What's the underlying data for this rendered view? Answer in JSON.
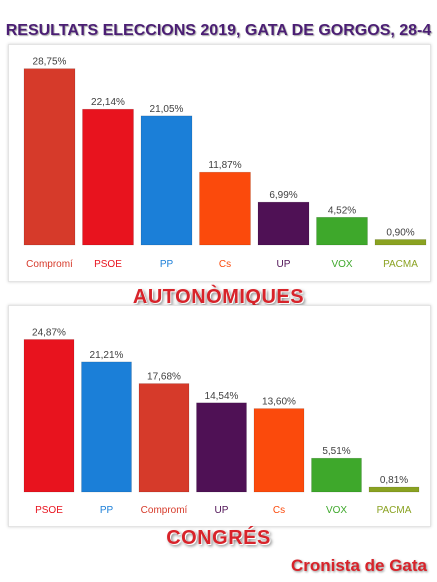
{
  "title": "RESULTATS ELECCIONS 2019, GATA DE GORGOS, 28-4",
  "credit": "Cronista de Gata",
  "chart_data": [
    {
      "type": "bar",
      "label": "AUTONÒMIQUES",
      "categories": [
        "Compromí",
        "PSOE",
        "PP",
        "Cs",
        "UP",
        "VOX",
        "PACMA"
      ],
      "values": [
        28.75,
        22.14,
        21.05,
        11.87,
        6.99,
        4.52,
        0.9
      ],
      "value_labels": [
        "28,75%",
        "22,14%",
        "21,05%",
        "11,87%",
        "6,99%",
        "4,52%",
        "0,90%"
      ],
      "colors": [
        "#d63a2a",
        "#e8131e",
        "#1b7fd8",
        "#fb4a0c",
        "#4f1155",
        "#3ea82b",
        "#8aa221"
      ],
      "ylim": [
        0,
        30
      ],
      "grid": false
    },
    {
      "type": "bar",
      "label": "CONGRÉS",
      "categories": [
        "PSOE",
        "PP",
        "Compromí",
        "UP",
        "Cs",
        "VOX",
        "PACMA"
      ],
      "values": [
        24.87,
        21.21,
        17.68,
        14.54,
        13.6,
        5.51,
        0.81
      ],
      "value_labels": [
        "24,87%",
        "21,21%",
        "17,68%",
        "14,54%",
        "13,60%",
        "5,51%",
        "0,81%"
      ],
      "colors": [
        "#e8131e",
        "#1b7fd8",
        "#d63a2a",
        "#4f1155",
        "#fb4a0c",
        "#3ea82b",
        "#8aa221"
      ],
      "ylim": [
        0,
        30
      ],
      "grid": false
    }
  ]
}
